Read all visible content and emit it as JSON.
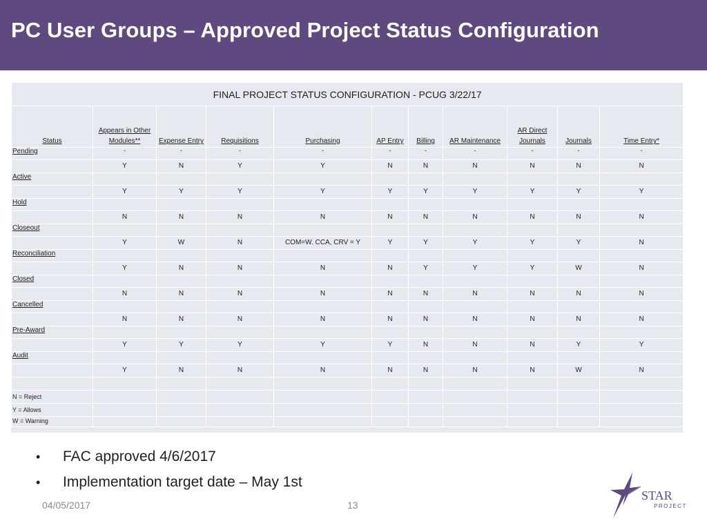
{
  "slide": {
    "title": "PC User Groups – Approved Project Status Configuration"
  },
  "table": {
    "title": "FINAL PROJECT STATUS CONFIGURATION - PCUG 3/22/17",
    "headers": [
      "Status",
      "Appears in Other Modules**",
      "Expense Entry",
      "Requisitions",
      "Purchasing",
      "AP Entry",
      "Billing",
      "AR Maintenance",
      "AR Direct Journals",
      "Journals",
      "Time Entry*"
    ],
    "rows": [
      {
        "status": "Pending",
        "dash": "-",
        "values": [
          "Y",
          "N",
          "Y",
          "Y",
          "N",
          "N",
          "N",
          "N",
          "N",
          "N"
        ]
      },
      {
        "status": "Active",
        "values": [
          "Y",
          "Y",
          "Y",
          "Y",
          "Y",
          "Y",
          "Y",
          "Y",
          "Y",
          "Y"
        ]
      },
      {
        "status": "Hold",
        "values": [
          "N",
          "N",
          "N",
          "N",
          "N",
          "N",
          "N",
          "N",
          "N",
          "N"
        ]
      },
      {
        "status": "Closeout",
        "values": [
          "Y",
          "W",
          "N",
          "COM=W.  CCA, CRV = Y",
          "Y",
          "Y",
          "Y",
          "Y",
          "Y",
          "N"
        ]
      },
      {
        "status": "Reconciliation",
        "values": [
          "Y",
          "N",
          "N",
          "N",
          "N",
          "Y",
          "Y",
          "Y",
          "W",
          "N"
        ]
      },
      {
        "status": "Closed",
        "values": [
          "N",
          "N",
          "N",
          "N",
          "N",
          "N",
          "N",
          "N",
          "N",
          "N"
        ]
      },
      {
        "status": "Cancelled",
        "values": [
          "N",
          "N",
          "N",
          "N",
          "N",
          "N",
          "N",
          "N",
          "N",
          "N"
        ]
      },
      {
        "status": "Pre-Award",
        "values": [
          "Y",
          "Y",
          "Y",
          "Y",
          "Y",
          "N",
          "N",
          "N",
          "Y",
          "Y"
        ]
      },
      {
        "status": "Audit",
        "values": [
          "Y",
          "N",
          "N",
          "N",
          "N",
          "N",
          "N",
          "N",
          "W",
          "N"
        ]
      }
    ],
    "legend": [
      "N = Reject",
      "Y = Allows",
      "W  = Warning"
    ]
  },
  "bullets": [
    "FAC approved  4/6/2017",
    "Implementation target date – May 1st"
  ],
  "footer": {
    "date": "04/05/2017",
    "page": "13"
  },
  "logo": {
    "text": "STAR",
    "subtext": "PROJECT",
    "color": "#5e4a7e"
  },
  "colors": {
    "title_bar": "#5e4a7e",
    "table_bg": "#e6e9ef"
  }
}
